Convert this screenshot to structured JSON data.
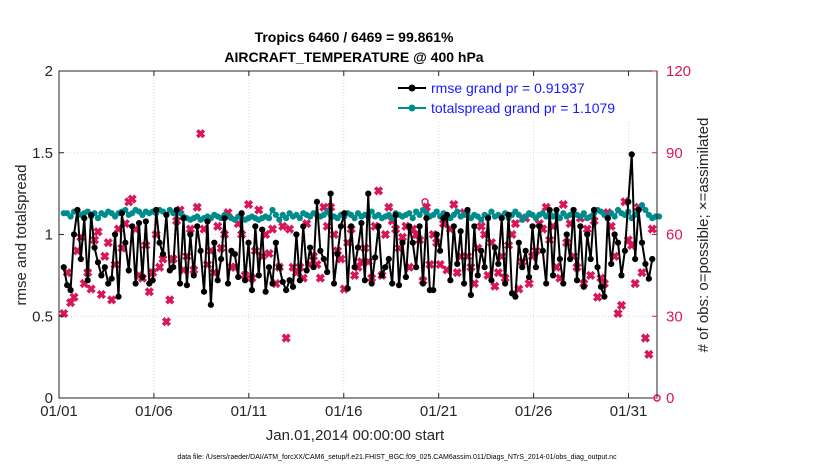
{
  "colors": {
    "rmse": "#000000",
    "spread": "#008c8c",
    "obs": "#d8175b",
    "legend_text": "#1a1aff",
    "axis": "#262626",
    "grid": "#d9d9d9"
  },
  "chart_data": {
    "type": "line",
    "title": "Tropics 6460 / 6469 = 99.861%",
    "subtitle": "AIRCRAFT_TEMPERATURE @ 400 hPa",
    "xlabel": "Jan.01,2014 00:00:00 start",
    "ylabel": "rmse and totalspread",
    "ylabel_right": "# of obs: o=possible; ×=assimilated",
    "footer": "data file: /Users/raeder/DAI/ATM_forcXX/CAM6_setup/f.e21.FHIST_BGC.f09_025.CAM6assim.011/Diags_NTrS_2014-01/obs_diag_output.nc",
    "x_range": [
      0,
      31.5
    ],
    "xticks": [
      0,
      5,
      10,
      15,
      20,
      25,
      30
    ],
    "xticklabels": [
      "01/01",
      "01/06",
      "01/11",
      "01/16",
      "01/21",
      "01/26",
      "01/31"
    ],
    "ylim": [
      0,
      2
    ],
    "yticks": [
      0,
      0.5,
      1,
      1.5,
      2
    ],
    "yticklabels": [
      "0",
      "0.5",
      "1",
      "1.5",
      "2"
    ],
    "ylim_right": [
      0,
      120
    ],
    "yticks_right": [
      0,
      30,
      60,
      90,
      120
    ],
    "yticklabels_right": [
      "0",
      "30",
      "60",
      "90",
      "120"
    ],
    "legend_position": "top-right",
    "series": [
      {
        "name": "rmse grand pr = 0.91937",
        "axis": "left",
        "marker": "filled-circle",
        "values": [
          0.8,
          0.69,
          0.66,
          1.0,
          1.15,
          0.85,
          1.1,
          0.72,
          1.12,
          0.92,
          0.83,
          0.75,
          0.8,
          0.7,
          0.73,
          1.0,
          0.62,
          1.13,
          0.95,
          0.78,
          1.05,
          0.7,
          1.07,
          0.74,
          1.08,
          0.7,
          0.72,
          1.15,
          0.95,
          0.88,
          1.12,
          0.78,
          0.8,
          1.15,
          0.7,
          1.1,
          0.69,
          1.0,
          0.75,
          1.05,
          0.9,
          0.65,
          1.08,
          0.57,
          0.95,
          0.72,
          0.85,
          1.1,
          0.7,
          0.9,
          0.88,
          0.74,
          1.13,
          0.72,
          0.95,
          0.66,
          1.05,
          0.75,
          1.03,
          0.65,
          0.8,
          0.7,
          0.95,
          0.8,
          0.71,
          0.66,
          0.72,
          0.68,
          1.0,
          0.72,
          1.05,
          0.78,
          0.92,
          0.8,
          1.2,
          0.9,
          0.85,
          0.77,
          1.25,
          0.7,
          0.88,
          1.05,
          1.13,
          0.67,
          1.05,
          0.8,
          0.92,
          1.07,
          0.72,
          1.25,
          0.7,
          0.86,
          1.05,
          0.75,
          0.8,
          0.85,
          0.7,
          1.12,
          0.69,
          0.95,
          0.74,
          1.05,
          0.95,
          0.8,
          1.05,
          0.7,
          1.1,
          0.66,
          0.66,
          1.0,
          0.9,
          1.1,
          1.12,
          0.72,
          1.05,
          0.82,
          1.02,
          0.7,
          1.15,
          0.63,
          1.05,
          0.75,
          0.9,
          0.8,
          1.1,
          0.72,
          0.92,
          0.82,
          1.1,
          0.7,
          1.12,
          0.64,
          0.62,
          0.95,
          0.8,
          0.9,
          0.74,
          1.05,
          0.8,
          1.05,
          0.9,
          0.7,
          1.15,
          0.75,
          1.15,
          0.85,
          0.7,
          1.0,
          0.85,
          1.15,
          0.72,
          1.05,
          0.68,
          1.0,
          0.85,
          1.15,
          0.8,
          0.68,
          0.62,
          1.1,
          0.82,
          1.0,
          0.95,
          0.75,
          0.9,
          1.2,
          1.49,
          0.85,
          1.15,
          0.95,
          0.82,
          0.73,
          0.85
        ]
      },
      {
        "name": "totalspread grand pr = 1.1079",
        "axis": "left",
        "marker": "filled-circle",
        "values": [
          1.13,
          1.13,
          1.11,
          1.14,
          1.14,
          1.12,
          1.13,
          1.14,
          1.11,
          1.13,
          1.1,
          1.13,
          1.12,
          1.14,
          1.13,
          1.11,
          1.13,
          1.14,
          1.15,
          1.12,
          1.13,
          1.15,
          1.14,
          1.12,
          1.14,
          1.13,
          1.14,
          1.13,
          1.15,
          1.14,
          1.12,
          1.15,
          1.13,
          1.14,
          1.13,
          1.11,
          1.1,
          1.09,
          1.1,
          1.11,
          1.09,
          1.1,
          1.11,
          1.1,
          1.12,
          1.11,
          1.1,
          1.12,
          1.11,
          1.1,
          1.09,
          1.11,
          1.1,
          1.09,
          1.1,
          1.11,
          1.1,
          1.09,
          1.1,
          1.11,
          1.1,
          1.15,
          1.12,
          1.09,
          1.12,
          1.1,
          1.13,
          1.11,
          1.12,
          1.1,
          1.13,
          1.12,
          1.11,
          1.13,
          1.12,
          1.11,
          1.12,
          1.14,
          1.12,
          1.11,
          1.1,
          1.12,
          1.11,
          1.13,
          1.12,
          1.1,
          1.13,
          1.11,
          1.12,
          1.11,
          1.14,
          1.11,
          1.12,
          1.1,
          1.11,
          1.12,
          1.1,
          1.13,
          1.12,
          1.11,
          1.12,
          1.13,
          1.1,
          1.14,
          1.12,
          1.15,
          1.13,
          1.11,
          1.12,
          1.14,
          1.11,
          1.13,
          1.12,
          1.1,
          1.12,
          1.14,
          1.11,
          1.12,
          1.13,
          1.1,
          1.12,
          1.11,
          1.09,
          1.12,
          1.11,
          1.14,
          1.11,
          1.12,
          1.11,
          1.13,
          1.1,
          1.12,
          1.14,
          1.12,
          1.09,
          1.11,
          1.13,
          1.12,
          1.1,
          1.12,
          1.13,
          1.11,
          1.13,
          1.11,
          1.12,
          1.1,
          1.13,
          1.11,
          1.12,
          1.15,
          1.12,
          1.11,
          1.13,
          1.1,
          1.11,
          1.13,
          1.15,
          1.14,
          1.12,
          1.1,
          1.13,
          1.11,
          1.15,
          1.13,
          1.12,
          1.14,
          1.1,
          1.12,
          1.15,
          1.18,
          1.15,
          1.12,
          1.1,
          1.11,
          1.11
        ]
      },
      {
        "name": "# of obs assimilated",
        "axis": "right",
        "marker": "cross",
        "values": [
          31,
          46,
          35,
          37,
          54,
          59,
          42,
          46,
          40,
          58,
          61,
          38,
          52,
          57,
          36,
          49,
          62,
          55,
          64,
          72,
          73,
          62,
          45,
          44,
          56,
          39,
          46,
          60,
          48,
          51,
          28,
          36,
          51,
          65,
          69,
          47,
          52,
          62,
          47,
          70,
          97,
          62,
          49,
          54,
          46,
          63,
          55,
          60,
          68,
          48,
          48,
          64,
          60,
          45,
          71,
          44,
          54,
          69,
          52,
          60,
          53,
          62,
          42,
          48,
          63,
          22,
          62,
          48,
          46,
          48,
          44,
          64,
          49,
          52,
          49,
          44,
          70,
          63,
          70,
          60,
          54,
          51,
          40,
          57,
          62,
          45,
          48,
          50,
          55,
          50,
          44,
          63,
          76,
          45,
          60,
          70,
          65,
          62,
          55,
          59,
          63,
          48,
          62,
          60,
          58,
          43,
          70,
          49,
          60,
          57,
          49,
          64,
          47,
          62,
          71,
          46,
          52,
          68,
          52,
          48,
          42,
          55,
          63,
          60,
          45,
          57,
          41,
          46,
          52,
          44,
          56,
          60,
          64,
          40,
          50,
          66,
          42,
          52,
          54,
          64,
          62,
          70,
          58,
          63,
          48,
          44,
          71,
          57,
          64,
          52,
          48,
          66,
          42,
          62,
          45,
          65,
          37,
          44,
          42,
          68,
          63,
          52,
          31,
          34,
          72,
          58,
          56,
          42,
          70,
          46,
          22,
          16,
          62
        ]
      },
      {
        "name": "# of obs possible",
        "axis": "right",
        "marker": "open-circle",
        "values": [
          31,
          46,
          35,
          37,
          54,
          59,
          42,
          46,
          40,
          58,
          61,
          38,
          52,
          57,
          36,
          49,
          62,
          55,
          64,
          72,
          73,
          62,
          45,
          44,
          56,
          39,
          46,
          60,
          48,
          51,
          28,
          36,
          51,
          65,
          69,
          47,
          52,
          62,
          47,
          70,
          97,
          62,
          49,
          54,
          46,
          63,
          55,
          60,
          68,
          48,
          48,
          64,
          60,
          45,
          71,
          44,
          54,
          69,
          52,
          60,
          53,
          62,
          42,
          48,
          63,
          22,
          62,
          48,
          46,
          48,
          44,
          64,
          49,
          52,
          49,
          44,
          70,
          63,
          70,
          60,
          54,
          51,
          40,
          57,
          62,
          45,
          48,
          50,
          55,
          50,
          44,
          63,
          76,
          45,
          60,
          70,
          65,
          62,
          55,
          59,
          63,
          48,
          62,
          60,
          58,
          43,
          70,
          49,
          60,
          57,
          49,
          64,
          47,
          62,
          71,
          46,
          52,
          68,
          52,
          48,
          42,
          55,
          63,
          60,
          45,
          57,
          41,
          46,
          52,
          44,
          56,
          60,
          64,
          40,
          50,
          66,
          42,
          52,
          54,
          64,
          62,
          70,
          58,
          63,
          48,
          44,
          71,
          57,
          64,
          52,
          48,
          66,
          42,
          62,
          45,
          65,
          37,
          44,
          42,
          68,
          63,
          52,
          31,
          34,
          72,
          58,
          56,
          42,
          70,
          46,
          22,
          16,
          62
        ]
      }
    ],
    "isolated_points": [
      {
        "name": "possible-obs-outlier",
        "x": 19.28,
        "y_right": 72,
        "marker": "open-circle"
      },
      {
        "name": "zero-obs-point",
        "x": 31.5,
        "y_right": 0,
        "marker": "open-circle"
      }
    ]
  }
}
